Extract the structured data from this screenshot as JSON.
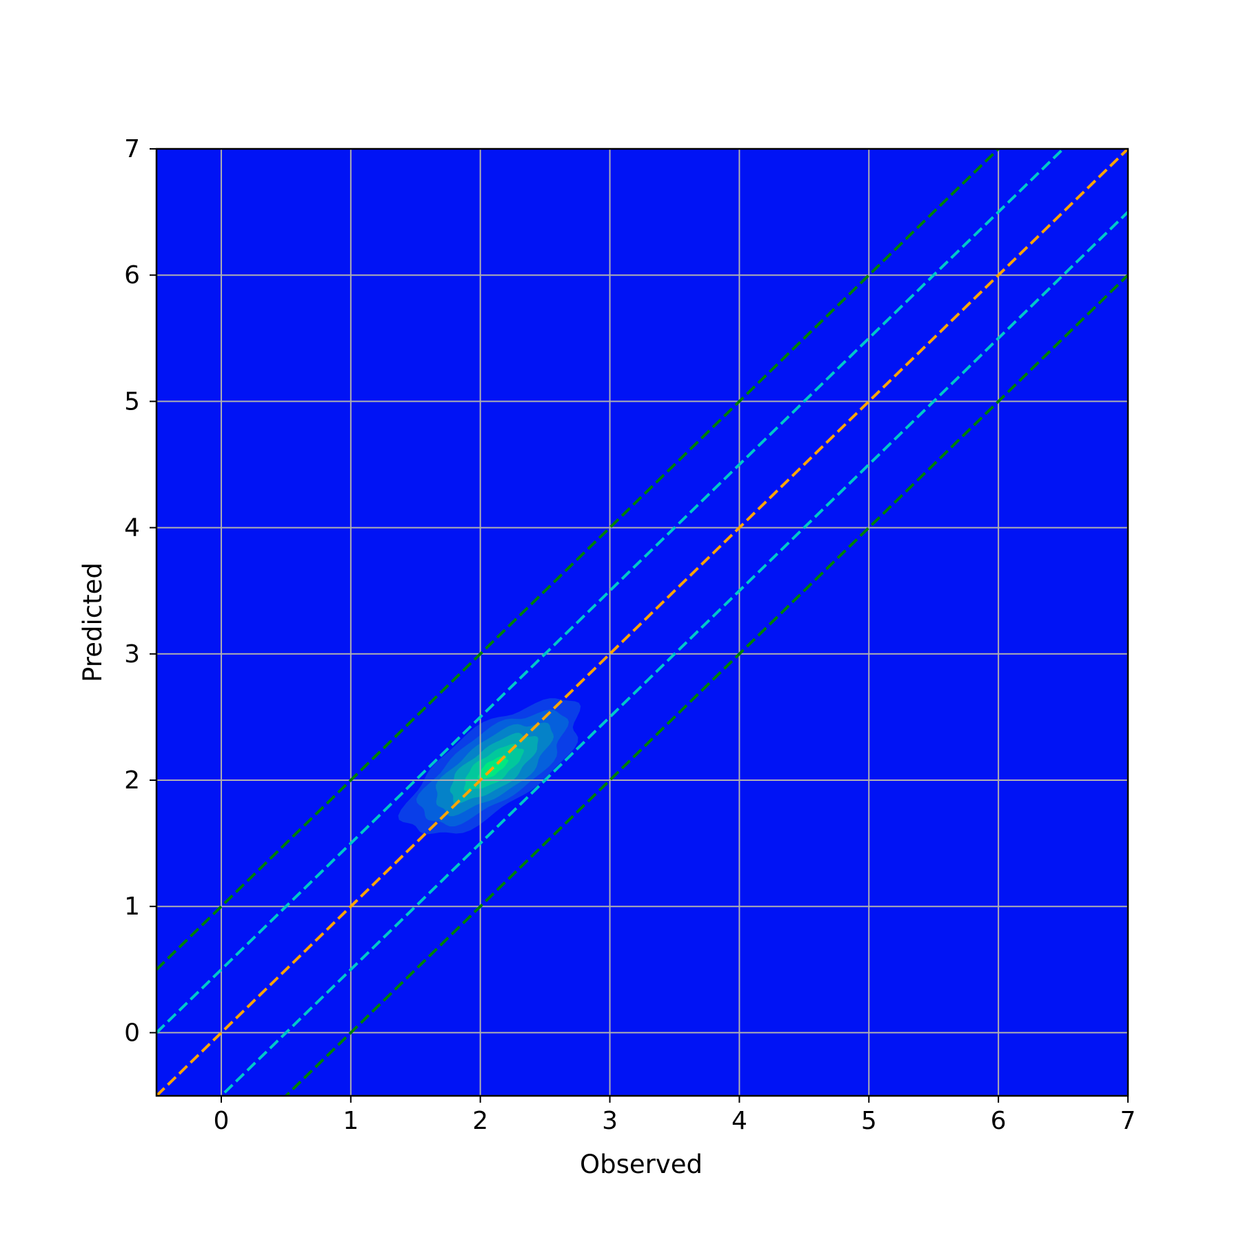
{
  "chart_data": {
    "type": "contour",
    "title": "",
    "xlabel": "Observed",
    "ylabel": "Predicted",
    "xlim": [
      -0.5,
      7
    ],
    "ylim": [
      -0.5,
      7
    ],
    "xticks": [
      "0",
      "1",
      "2",
      "3",
      "4",
      "5",
      "6",
      "7"
    ],
    "yticks": [
      "0",
      "1",
      "2",
      "3",
      "4",
      "5",
      "6",
      "7"
    ],
    "grid": true,
    "background_color": "#0013f5",
    "density": {
      "center": [
        2.1,
        2.1
      ],
      "direction": [
        1,
        0.72
      ],
      "spread_major": 0.8,
      "spread_minor": 0.32,
      "levels": [
        {
          "level": 1,
          "color": "#0a3ee8"
        },
        {
          "level": 2,
          "color": "#0560dc"
        },
        {
          "level": 3,
          "color": "#0582c8"
        },
        {
          "level": 4,
          "color": "#04a8b4"
        },
        {
          "level": 5,
          "color": "#02c89c"
        },
        {
          "level": 6,
          "color": "#00e880"
        }
      ]
    },
    "reference_lines": [
      {
        "offset": 1.0,
        "color": "#008000"
      },
      {
        "offset": 0.5,
        "color": "#00c8c8"
      },
      {
        "offset": 0.0,
        "color": "#ffa500"
      },
      {
        "offset": -0.5,
        "color": "#00c8c8"
      },
      {
        "offset": -1.0,
        "color": "#008000"
      }
    ]
  }
}
